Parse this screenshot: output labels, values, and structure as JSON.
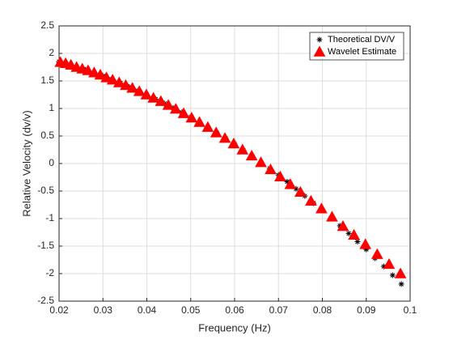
{
  "chart_data": {
    "type": "scatter",
    "xlabel": "Frequency (Hz)",
    "ylabel": "Relative Velocity (dv/v)",
    "xlim": [
      0.02,
      0.1
    ],
    "xticks": [
      0.02,
      0.03,
      0.04,
      0.05,
      0.06,
      0.07,
      0.08,
      0.09,
      0.1
    ],
    "ylim": [
      -2.5,
      2.5
    ],
    "yticks": [
      -2.5,
      -2,
      -1.5,
      -1,
      -0.5,
      0,
      0.5,
      1,
      1.5,
      2,
      2.5
    ],
    "grid": true,
    "legend": "northeast",
    "series": [
      {
        "name": "Theoretical DV/V",
        "color": "#000000",
        "marker": "asterisk",
        "x": [
          0.02,
          0.022,
          0.024,
          0.026,
          0.028,
          0.03,
          0.032,
          0.034,
          0.036,
          0.038,
          0.04,
          0.042,
          0.044,
          0.046,
          0.048,
          0.05,
          0.052,
          0.054,
          0.056,
          0.058,
          0.06,
          0.062,
          0.064,
          0.066,
          0.068,
          0.07,
          0.072,
          0.074,
          0.076,
          0.078,
          0.08,
          0.082,
          0.084,
          0.086,
          0.088,
          0.09,
          0.092,
          0.094,
          0.096,
          0.098
        ],
        "values": [
          1.85,
          1.8,
          1.75,
          1.7,
          1.65,
          1.59,
          1.53,
          1.46,
          1.39,
          1.32,
          1.25,
          1.17,
          1.09,
          1.01,
          0.93,
          0.84,
          0.75,
          0.65,
          0.55,
          0.45,
          0.35,
          0.24,
          0.13,
          0.02,
          -0.09,
          -0.21,
          -0.33,
          -0.46,
          -0.59,
          -0.72,
          -0.85,
          -0.99,
          -1.13,
          -1.27,
          -1.42,
          -1.56,
          -1.72,
          -1.87,
          -2.03,
          -2.19
        ]
      },
      {
        "name": "Wavelet Estimate",
        "color": "#ff0000",
        "marker": "triangle",
        "x": [
          0.0203,
          0.0215,
          0.0227,
          0.024,
          0.0253,
          0.0266,
          0.028,
          0.0294,
          0.0308,
          0.0322,
          0.0337,
          0.0352,
          0.0367,
          0.0383,
          0.0399,
          0.0415,
          0.0432,
          0.0449,
          0.0466,
          0.0484,
          0.0502,
          0.052,
          0.0539,
          0.0558,
          0.0578,
          0.0598,
          0.0618,
          0.0639,
          0.066,
          0.0682,
          0.0704,
          0.0727,
          0.075,
          0.0774,
          0.0798,
          0.0822,
          0.0847,
          0.0872,
          0.0898,
          0.0925,
          0.0952,
          0.0978
        ],
        "values": [
          1.84,
          1.82,
          1.79,
          1.75,
          1.72,
          1.69,
          1.65,
          1.61,
          1.56,
          1.52,
          1.47,
          1.42,
          1.37,
          1.31,
          1.25,
          1.19,
          1.13,
          1.06,
          0.99,
          0.91,
          0.83,
          0.75,
          0.66,
          0.56,
          0.46,
          0.36,
          0.25,
          0.14,
          0.02,
          -0.11,
          -0.24,
          -0.38,
          -0.52,
          -0.68,
          -0.82,
          -0.97,
          -1.14,
          -1.3,
          -1.47,
          -1.65,
          -1.83,
          -2.0
        ]
      }
    ]
  }
}
